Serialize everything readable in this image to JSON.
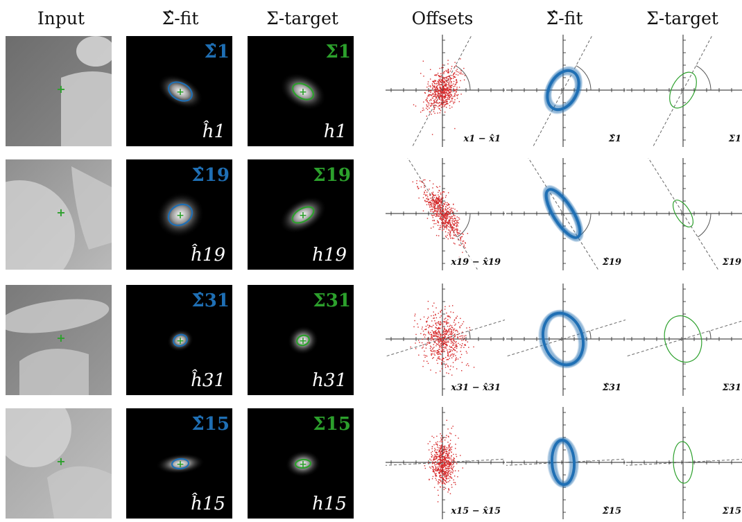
{
  "headers": {
    "input": "Input",
    "fit_hat": "Σ̂-fit",
    "target": "Σ-target",
    "offsets": "Offsets",
    "fit_hat2": "Σ̂-fit",
    "target2": "Σ-target"
  },
  "colors": {
    "fit": "#1f6fb4",
    "target": "#2ca02c",
    "scatter": "#d62728"
  },
  "rows": [
    {
      "idx": "1",
      "sig_hat": "Σ̂1",
      "sig": "Σ1",
      "h_hat": "ĥ1",
      "h": "h1",
      "offset_label": "x1 − x̂1",
      "fit_label": "Σ̂1",
      "target_label": "Σ1"
    },
    {
      "idx": "19",
      "sig_hat": "Σ̂19",
      "sig": "Σ19",
      "h_hat": "ĥ19",
      "h": "h19",
      "offset_label": "x19 − x̂19",
      "fit_label": "Σ̂19",
      "target_label": "Σ19"
    },
    {
      "idx": "31",
      "sig_hat": "Σ̂31",
      "sig": "Σ31",
      "h_hat": "ĥ31",
      "h": "h31",
      "offset_label": "x31 − x̂31",
      "fit_label": "Σ̂31",
      "target_label": "Σ31"
    },
    {
      "idx": "15",
      "sig_hat": "Σ̂15",
      "sig": "Σ15",
      "h_hat": "ĥ15",
      "h": "h15",
      "offset_label": "x15 − x̂15",
      "fit_label": "Σ̂15",
      "target_label": "Σ15"
    }
  ]
}
